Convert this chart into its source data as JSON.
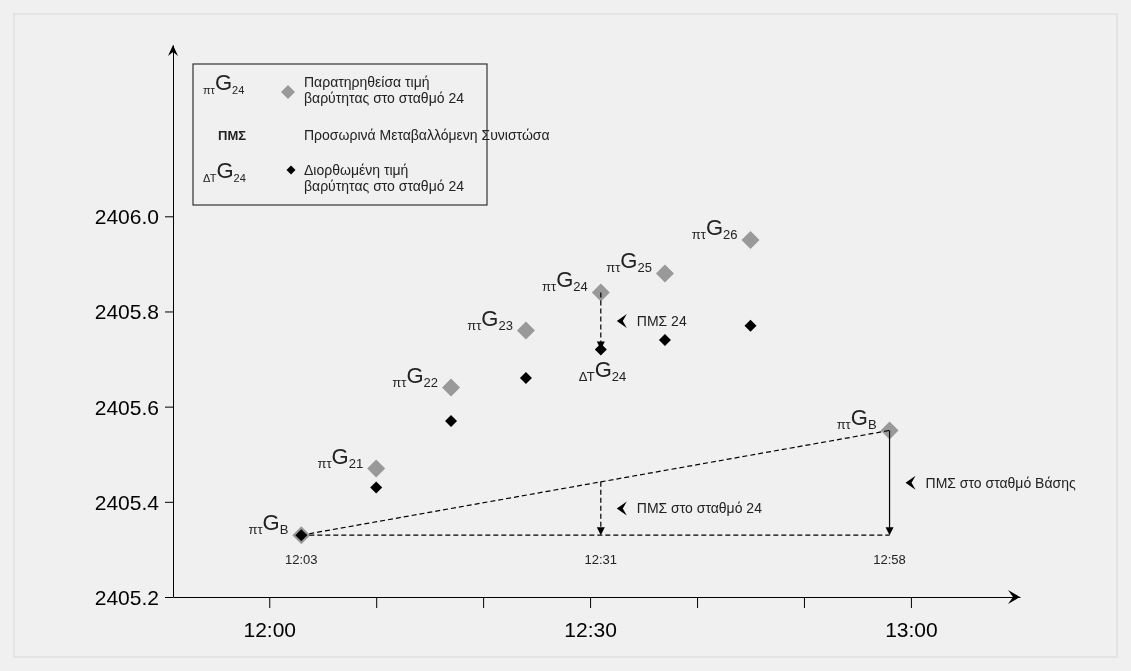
{
  "chart_data": {
    "type": "scatter",
    "xlim": [
      11.85,
      13.17
    ],
    "ylim": [
      2405.2,
      2406.36
    ],
    "xticks": [
      {
        "value": 12,
        "label": "12:00"
      },
      {
        "value": 12.1667,
        "label": null
      },
      {
        "value": 12.3333,
        "label": null
      },
      {
        "value": 12.5,
        "label": "12:30"
      },
      {
        "value": 12.6667,
        "label": null
      },
      {
        "value": 12.8333,
        "label": null
      },
      {
        "value": 13,
        "label": "13:00"
      }
    ],
    "yticks": [
      {
        "value": 2405.2,
        "label": "2405.2"
      },
      {
        "value": 2405.4,
        "label": "2405.4"
      },
      {
        "value": 2405.6,
        "label": "2405.6"
      },
      {
        "value": 2405.8,
        "label": "2405.8"
      },
      {
        "value": 2406,
        "label": "2406.0"
      }
    ],
    "legend": "top left",
    "series": [
      {
        "name": "Παρατηρηθείσα τιμή βαρύτητας στο σταθμό 24",
        "color": "#999999",
        "marker": "diamond",
        "x": [
          12.05,
          12.1667,
          12.2833,
          12.4,
          12.5167,
          12.6167,
          12.75,
          12.9667
        ],
        "values": [
          2405.33,
          2405.47,
          2405.64,
          2405.76,
          2405.84,
          2405.88,
          2405.95,
          2405.55
        ]
      },
      {
        "name": "Διορθωμένη τιμή βαρύτητας στο σταθμό 24",
        "color": "#000000",
        "marker": "diamond",
        "x": [
          12.05,
          12.1667,
          12.2833,
          12.4,
          12.5167,
          12.6167,
          12.75
        ],
        "values": [
          2405.33,
          2405.43,
          2405.57,
          2405.66,
          2405.72,
          2405.74,
          2405.77
        ]
      }
    ],
    "annotations": [
      "$_{πτ}$G$_{24}$",
      "ΠΜΣ",
      "Προσωρινά Μεταβαλλόμενη Συνιστώσα",
      "$_{ΔΤ}$G$_{24}$",
      "ΠΜΣ 24",
      "ΠΜΣ στο σταθμό 24",
      "ΠΜΣ στο σταθμό Βάσης",
      "12:31",
      "12:58",
      {
        "text": "$_{πτ}$G$_{B}$",
        "x": 12.05,
        "y": 2405.33
      },
      {
        "text": "$_{πτ}$G$_{21}$",
        "x": 12.1667,
        "y": 2405.47
      },
      {
        "text": "$_{πτ}$G$_{22}$",
        "x": 12.2833,
        "y": 2405.64
      },
      {
        "text": "$_{πτ}$G$_{23}$",
        "x": 12.4,
        "y": 2405.76
      },
      {
        "text": "$_{πτ}$G$_{24}$",
        "x": 12.5167,
        "y": 2405.84
      },
      {
        "text": "$_{πτ}$G$_{25}$",
        "x": 12.6167,
        "y": 2405.88
      },
      {
        "text": "$_{πτ}$G$_{26}$",
        "x": 12.75,
        "y": 2405.95
      },
      {
        "text": "$_{πτ}$G$_{B}$",
        "x": 12.9667,
        "y": 2405.55
      },
      {
        "text": "$_{ΔΤ}$G$_{24}$",
        "x": 12.5167,
        "y": 2405.72
      },
      {
        "text": "12:03",
        "x": 12.05,
        "y": 2405.33
      }
    ]
  }
}
